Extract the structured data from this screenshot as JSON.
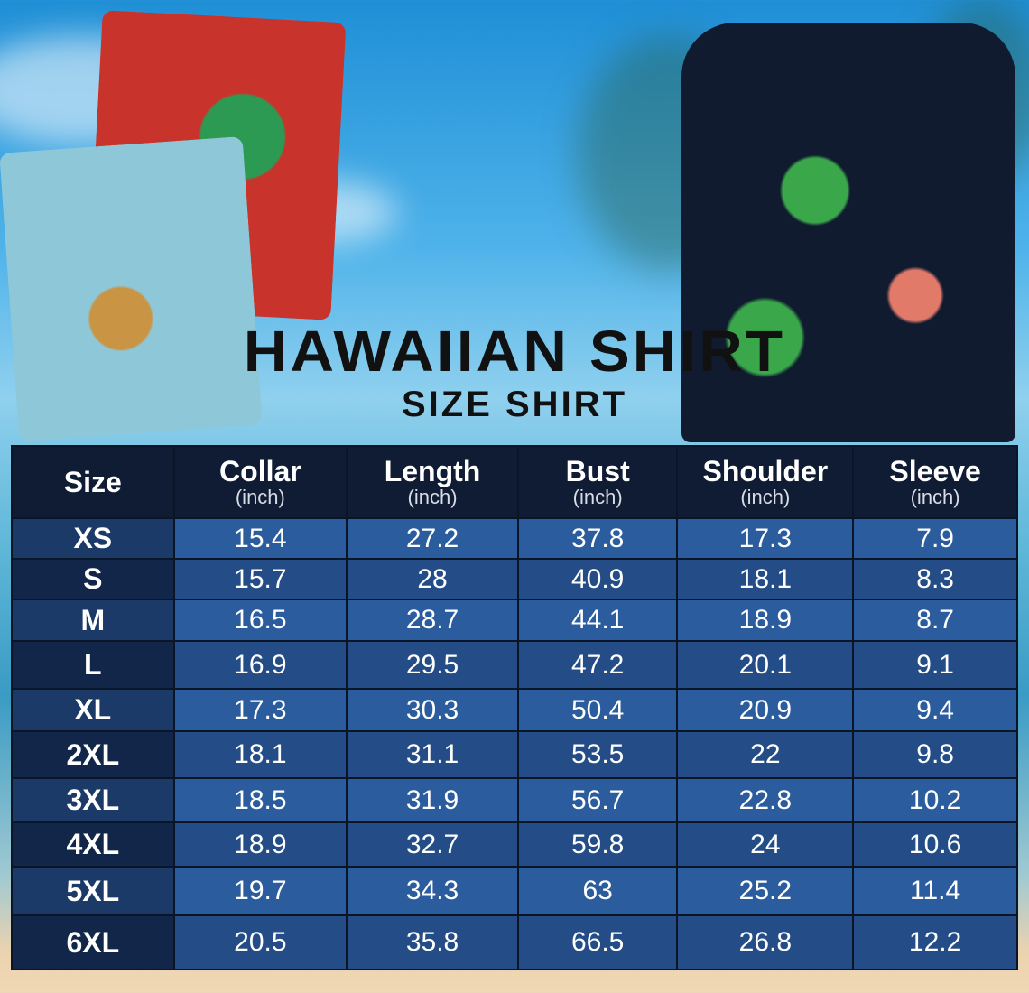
{
  "title": "HAWAIIAN SHIRT",
  "subtitle": "SIZE SHIRT",
  "table": {
    "headers": [
      {
        "label": "Size",
        "unit": ""
      },
      {
        "label": "Collar",
        "unit": "(inch)"
      },
      {
        "label": "Length",
        "unit": "(inch)"
      },
      {
        "label": "Bust",
        "unit": "(inch)"
      },
      {
        "label": "Shoulder",
        "unit": "(inch)"
      },
      {
        "label": "Sleeve",
        "unit": "(inch)"
      }
    ],
    "rows": [
      [
        "XS",
        "15.4",
        "27.2",
        "37.8",
        "17.3",
        "7.9"
      ],
      [
        "S",
        "15.7",
        "28",
        "40.9",
        "18.1",
        "8.3"
      ],
      [
        "M",
        "16.5",
        "28.7",
        "44.1",
        "18.9",
        "8.7"
      ],
      [
        "L",
        "16.9",
        "29.5",
        "47.2",
        "20.1",
        "9.1"
      ],
      [
        "XL",
        "17.3",
        "30.3",
        "50.4",
        "20.9",
        "9.4"
      ],
      [
        "2XL",
        "18.1",
        "31.1",
        "53.5",
        "22",
        "9.8"
      ],
      [
        "3XL",
        "18.5",
        "31.9",
        "56.7",
        "22.8",
        "10.2"
      ],
      [
        "4XL",
        "18.9",
        "32.7",
        "59.8",
        "24",
        "10.6"
      ],
      [
        "5XL",
        "19.7",
        "34.3",
        "63",
        "25.2",
        "11.4"
      ],
      [
        "6XL",
        "20.5",
        "35.8",
        "66.5",
        "26.8",
        "12.2"
      ]
    ]
  }
}
